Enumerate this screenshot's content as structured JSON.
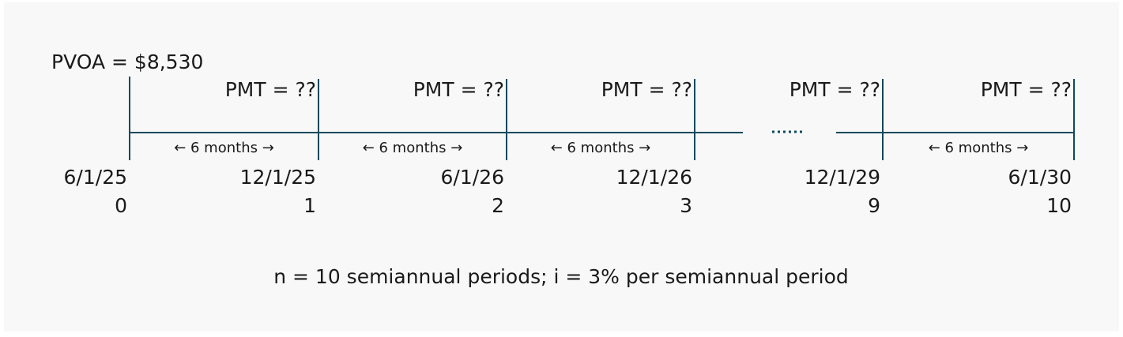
{
  "pvoa": "PVOA = $8,530",
  "points": [
    {
      "pmt": null,
      "date": "6/1/25",
      "period": "0"
    },
    {
      "pmt": "PMT = ??",
      "date": "12/1/25",
      "period": "1"
    },
    {
      "pmt": "PMT = ??",
      "date": "6/1/26",
      "period": "2"
    },
    {
      "pmt": "PMT = ??",
      "date": "12/1/26",
      "period": "3"
    },
    {
      "pmt": "PMT = ??",
      "date": "12/1/29",
      "period": "9"
    },
    {
      "pmt": "PMT = ??",
      "date": "6/1/30",
      "period": "10"
    }
  ],
  "intervals": [
    "← 6 months →",
    "← 6 months →",
    "← 6 months →",
    null,
    "← 6 months →"
  ],
  "footer": "n = 10 semiannual periods; i = 3% per semiannual period"
}
